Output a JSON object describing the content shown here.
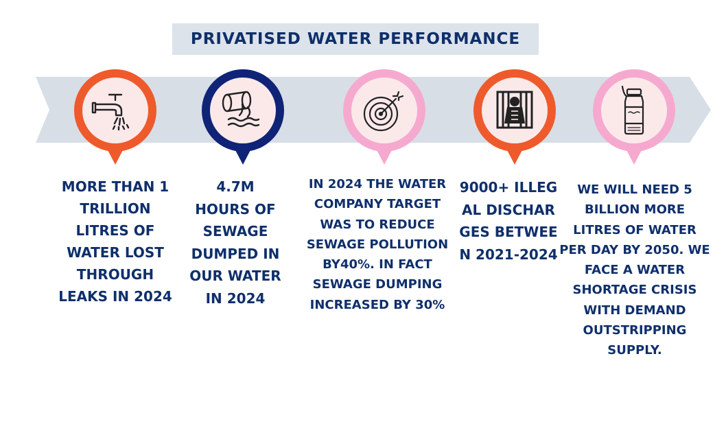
{
  "title": "PRIVATISED WATER PERFORMANCE",
  "colors": {
    "band": "#d8dee6",
    "title_bg": "#dde3ea",
    "text": "#0f2f6b",
    "orange": "#ee5a2c",
    "navy": "#0f2377",
    "pink": "#f6a9cf",
    "icon_bg": "#fbe9ea"
  },
  "items": [
    {
      "icon": "tap-icon",
      "pin_color": "orange",
      "text": "MORE THAN 1 TRILLION LITRES OF WATER LOST THROUGH LEAKS IN 2024"
    },
    {
      "icon": "sewage-pipe-icon",
      "pin_color": "navy",
      "text": "4.7M HOURS OF SEWAGE DUMPED IN OUR WATER IN 2024"
    },
    {
      "icon": "target-icon",
      "pin_color": "pink",
      "text": "IN 2024 THE WATER COMPANY TARGET WAS TO REDUCE SEWAGE POLLUTION BY40%. IN FACT SEWAGE DUMPING INCREASED BY 30%"
    },
    {
      "icon": "prison-icon",
      "pin_color": "orange",
      "text": "9000+ ILLEGAL DISCHARGES BETWEEN 2021-2024"
    },
    {
      "icon": "water-bottle-icon",
      "pin_color": "pink",
      "text": "WE WILL NEED 5 BILLION MORE LITRES OF WATER PER DAY BY 2050. WE FACE A WATER SHORTAGE CRISIS WITH DEMAND OUTSTRIPPING SUPPLY."
    }
  ]
}
